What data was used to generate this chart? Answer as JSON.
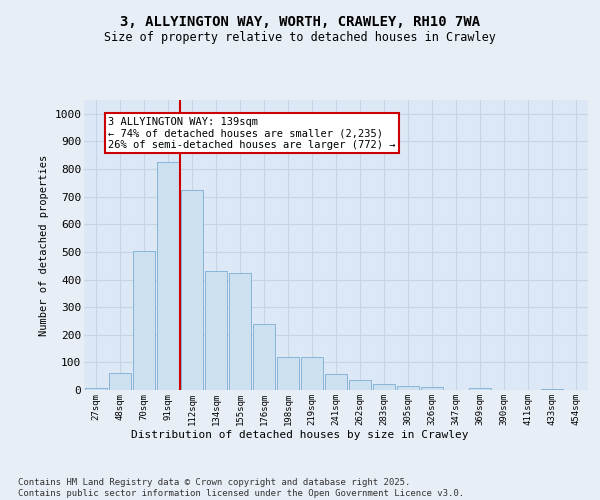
{
  "title_line1": "3, ALLYINGTON WAY, WORTH, CRAWLEY, RH10 7WA",
  "title_line2": "Size of property relative to detached houses in Crawley",
  "xlabel": "Distribution of detached houses by size in Crawley",
  "ylabel": "Number of detached properties",
  "bar_color": "#cce0f0",
  "bar_edge_color": "#7aadd4",
  "grid_color": "#c5d5e5",
  "bg_color": "#e8eef5",
  "plot_bg_color": "#dce8f5",
  "categories": [
    "27sqm",
    "48sqm",
    "70sqm",
    "91sqm",
    "112sqm",
    "134sqm",
    "155sqm",
    "176sqm",
    "198sqm",
    "219sqm",
    "241sqm",
    "262sqm",
    "283sqm",
    "305sqm",
    "326sqm",
    "347sqm",
    "369sqm",
    "390sqm",
    "411sqm",
    "433sqm",
    "454sqm"
  ],
  "values": [
    8,
    60,
    505,
    825,
    725,
    430,
    425,
    240,
    120,
    120,
    58,
    35,
    20,
    15,
    10,
    0,
    8,
    0,
    0,
    5,
    0
  ],
  "ylim": [
    0,
    1050
  ],
  "yticks": [
    0,
    100,
    200,
    300,
    400,
    500,
    600,
    700,
    800,
    900,
    1000
  ],
  "vline_x": 3.5,
  "vline_color": "#cc0000",
  "annotation_text": "3 ALLYINGTON WAY: 139sqm\n← 74% of detached houses are smaller (2,235)\n26% of semi-detached houses are larger (772) →",
  "footer_text": "Contains HM Land Registry data © Crown copyright and database right 2025.\nContains public sector information licensed under the Open Government Licence v3.0."
}
